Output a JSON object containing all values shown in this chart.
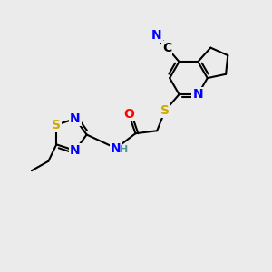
{
  "bg_color": "#ebebeb",
  "atom_colors": {
    "C": "#000000",
    "N": "#0000ff",
    "O": "#ff0000",
    "S": "#ccaa00",
    "H": "#4a9a8a"
  },
  "bond_color": "#000000",
  "bond_width": 1.5,
  "font_size_atom": 10
}
